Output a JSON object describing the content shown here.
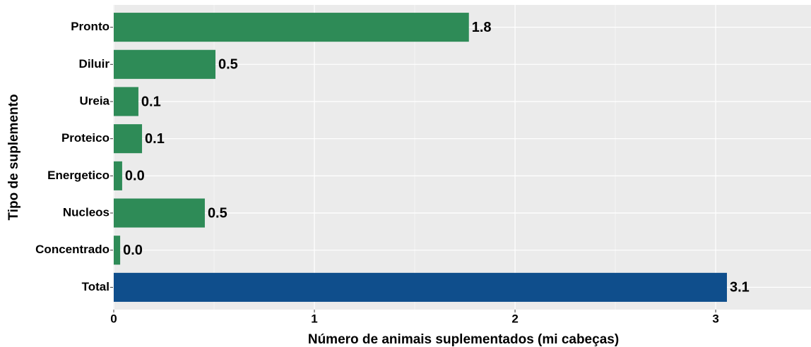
{
  "chart_data": {
    "type": "bar",
    "orientation": "horizontal",
    "x_label": "Número de animais suplementados (mi cabeças)",
    "y_label": "Tipo de suplemento",
    "categories": [
      "Pronto",
      "Diluir",
      "Ureia",
      "Proteico",
      "Energetico",
      "Nucleos",
      "Concentrado",
      "Total"
    ],
    "values": [
      1.77,
      0.507,
      0.123,
      0.141,
      0.042,
      0.454,
      0.032,
      3.056
    ],
    "value_labels": [
      "1.8",
      "0.5",
      "0.1",
      "0.1",
      "0.0",
      "0.5",
      "0.0",
      "3.1"
    ],
    "colors": [
      "#2e8b57",
      "#2e8b57",
      "#2e8b57",
      "#2e8b57",
      "#2e8b57",
      "#2e8b57",
      "#2e8b57",
      "#0f4e8c"
    ],
    "xlim": [
      0,
      3.475
    ],
    "xticks": [
      0,
      1,
      2,
      3
    ],
    "grid": true
  }
}
